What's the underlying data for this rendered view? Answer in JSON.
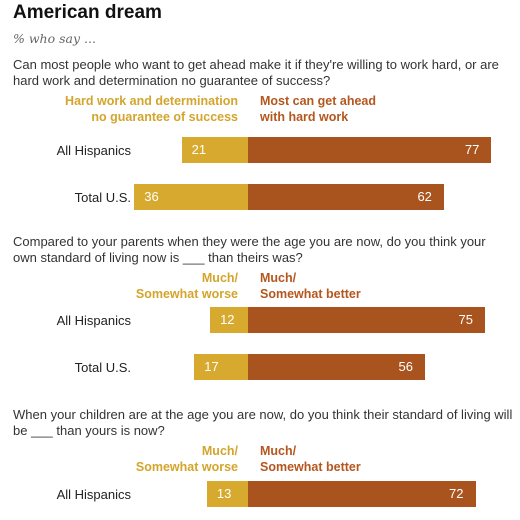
{
  "header": {
    "title": "American dream",
    "subtitle": "% who say ..."
  },
  "chart_data": [
    {
      "type": "bar",
      "orientation": "horizontal-diverging",
      "question": "Can most people who want to get ahead make it if they're willing to work hard, or are hard work and determination no guarantee of success?",
      "categories": [
        "All Hispanics",
        "Total U.S."
      ],
      "series": [
        {
          "name": "Hard work and determination no guarantee of success",
          "name_lines": [
            "Hard work and determination",
            "no guarantee of success"
          ],
          "values": [
            21,
            36
          ],
          "labels": [
            "21",
            "36"
          ],
          "color": "#d8a92f"
        },
        {
          "name": "Most can get ahead with hard work",
          "name_lines": [
            "Most can get ahead",
            "with hard work"
          ],
          "values": [
            77,
            62
          ],
          "labels": [
            "77",
            "62"
          ],
          "color": "#a9531f"
        }
      ]
    },
    {
      "type": "bar",
      "orientation": "horizontal-diverging",
      "question": "Compared to your parents when they were the age you are now, do you think your own standard of living now is ___ than theirs was?",
      "categories": [
        "All Hispanics",
        "Total U.S."
      ],
      "series": [
        {
          "name": "Much/ Somewhat worse",
          "name_lines": [
            "Much/",
            "Somewhat worse"
          ],
          "values": [
            12,
            17
          ],
          "labels": [
            "12",
            "17"
          ],
          "color": "#d8a92f"
        },
        {
          "name": "Much/ Somewhat better",
          "name_lines": [
            "Much/",
            "Somewhat better"
          ],
          "values": [
            75,
            56
          ],
          "labels": [
            "75",
            "56"
          ],
          "color": "#a9531f"
        }
      ]
    },
    {
      "type": "bar",
      "orientation": "horizontal-diverging",
      "question": "When your children are at the age you are now, do you think their standard of living will be ___ than yours is now?",
      "categories": [
        "All Hispanics"
      ],
      "series": [
        {
          "name": "Much/ Somewhat worse",
          "name_lines": [
            "Much/",
            "Somewhat worse"
          ],
          "values": [
            13
          ],
          "labels": [
            "13"
          ],
          "color": "#d8a92f"
        },
        {
          "name": "Much/ Somewhat better",
          "name_lines": [
            "Much/",
            "Somewhat better"
          ],
          "values": [
            72
          ],
          "labels": [
            "72"
          ],
          "color": "#a9531f"
        }
      ]
    }
  ]
}
